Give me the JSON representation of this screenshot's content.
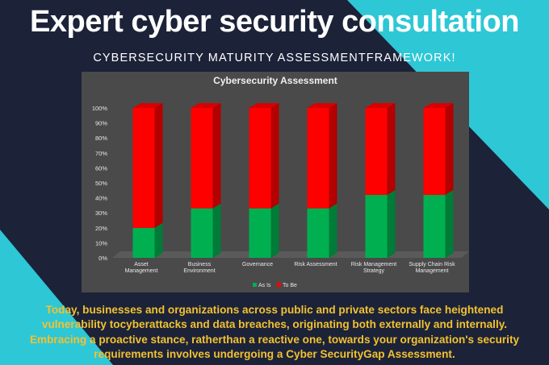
{
  "headline": "Expert cyber security consultation",
  "subheadline": "CYBERSECURITY MATURITY ASSESSMENTFRAMEWORK!",
  "colors": {
    "accent": "#2ec7d6",
    "background": "#1c2238",
    "text_highlight": "#f2c230",
    "as_is": "#00b050",
    "to_be": "#ff0000"
  },
  "chart_data": {
    "type": "bar",
    "stacked": true,
    "title": "Cybersecurity Assessment",
    "categories": [
      [
        "Asset",
        "Management"
      ],
      [
        "Business",
        "Environment"
      ],
      [
        "Governance"
      ],
      [
        "Risk Assessment"
      ],
      [
        "Risk Management",
        "Strategy"
      ],
      [
        "Supply Chain Risk",
        "Management"
      ]
    ],
    "series": [
      {
        "name": "As Is",
        "color": "#00b050",
        "values": [
          20,
          33,
          33,
          33,
          42,
          42
        ]
      },
      {
        "name": "To Be",
        "color": "#ff0000",
        "values": [
          80,
          67,
          67,
          67,
          58,
          58
        ]
      }
    ],
    "ylim": [
      0,
      100
    ],
    "yticks": [
      "0%",
      "10%",
      "20%",
      "30%",
      "40%",
      "50%",
      "60%",
      "70%",
      "80%",
      "90%",
      "100%"
    ],
    "legend_position": "bottom",
    "grid": false
  },
  "body_lines": [
    "Today, businesses and organizations across public and private sectors face heightened",
    "vulnerability tocyberattacks and data breaches, originating both externally and internally.",
    "Embracing a proactive stance, ratherthan a reactive one, towards your organization's security",
    "requirements involves undergoing a Cyber SecurityGap Assessment."
  ]
}
